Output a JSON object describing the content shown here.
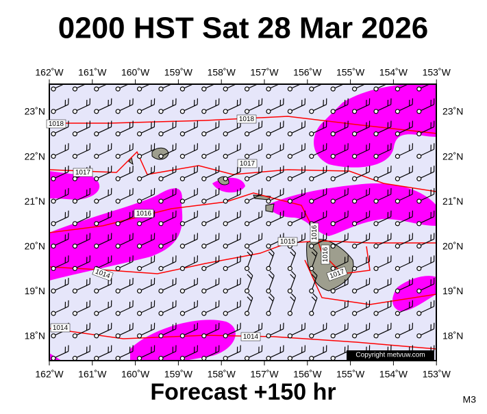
{
  "header": {
    "title": "0200 HST Sat 28 Mar 2026"
  },
  "map": {
    "lon_labels": [
      "162˚W",
      "161˚W",
      "160˚W",
      "159˚W",
      "158˚W",
      "157˚W",
      "156˚W",
      "155˚W",
      "154˚W",
      "153˚W"
    ],
    "lat_labels": [
      "23˚N",
      "22˚N",
      "21˚N",
      "20˚N",
      "19˚N",
      "18˚N"
    ],
    "isobar_labels": [
      "1018",
      "1018",
      "1017",
      "1017",
      "1016",
      "1015",
      "1016",
      "1016",
      "1017",
      "1014",
      "1014",
      "1014"
    ],
    "copyright": "Copyright metvuw.com"
  },
  "footer": {
    "forecast": "Forecast +150 hr",
    "model": "M3"
  }
}
